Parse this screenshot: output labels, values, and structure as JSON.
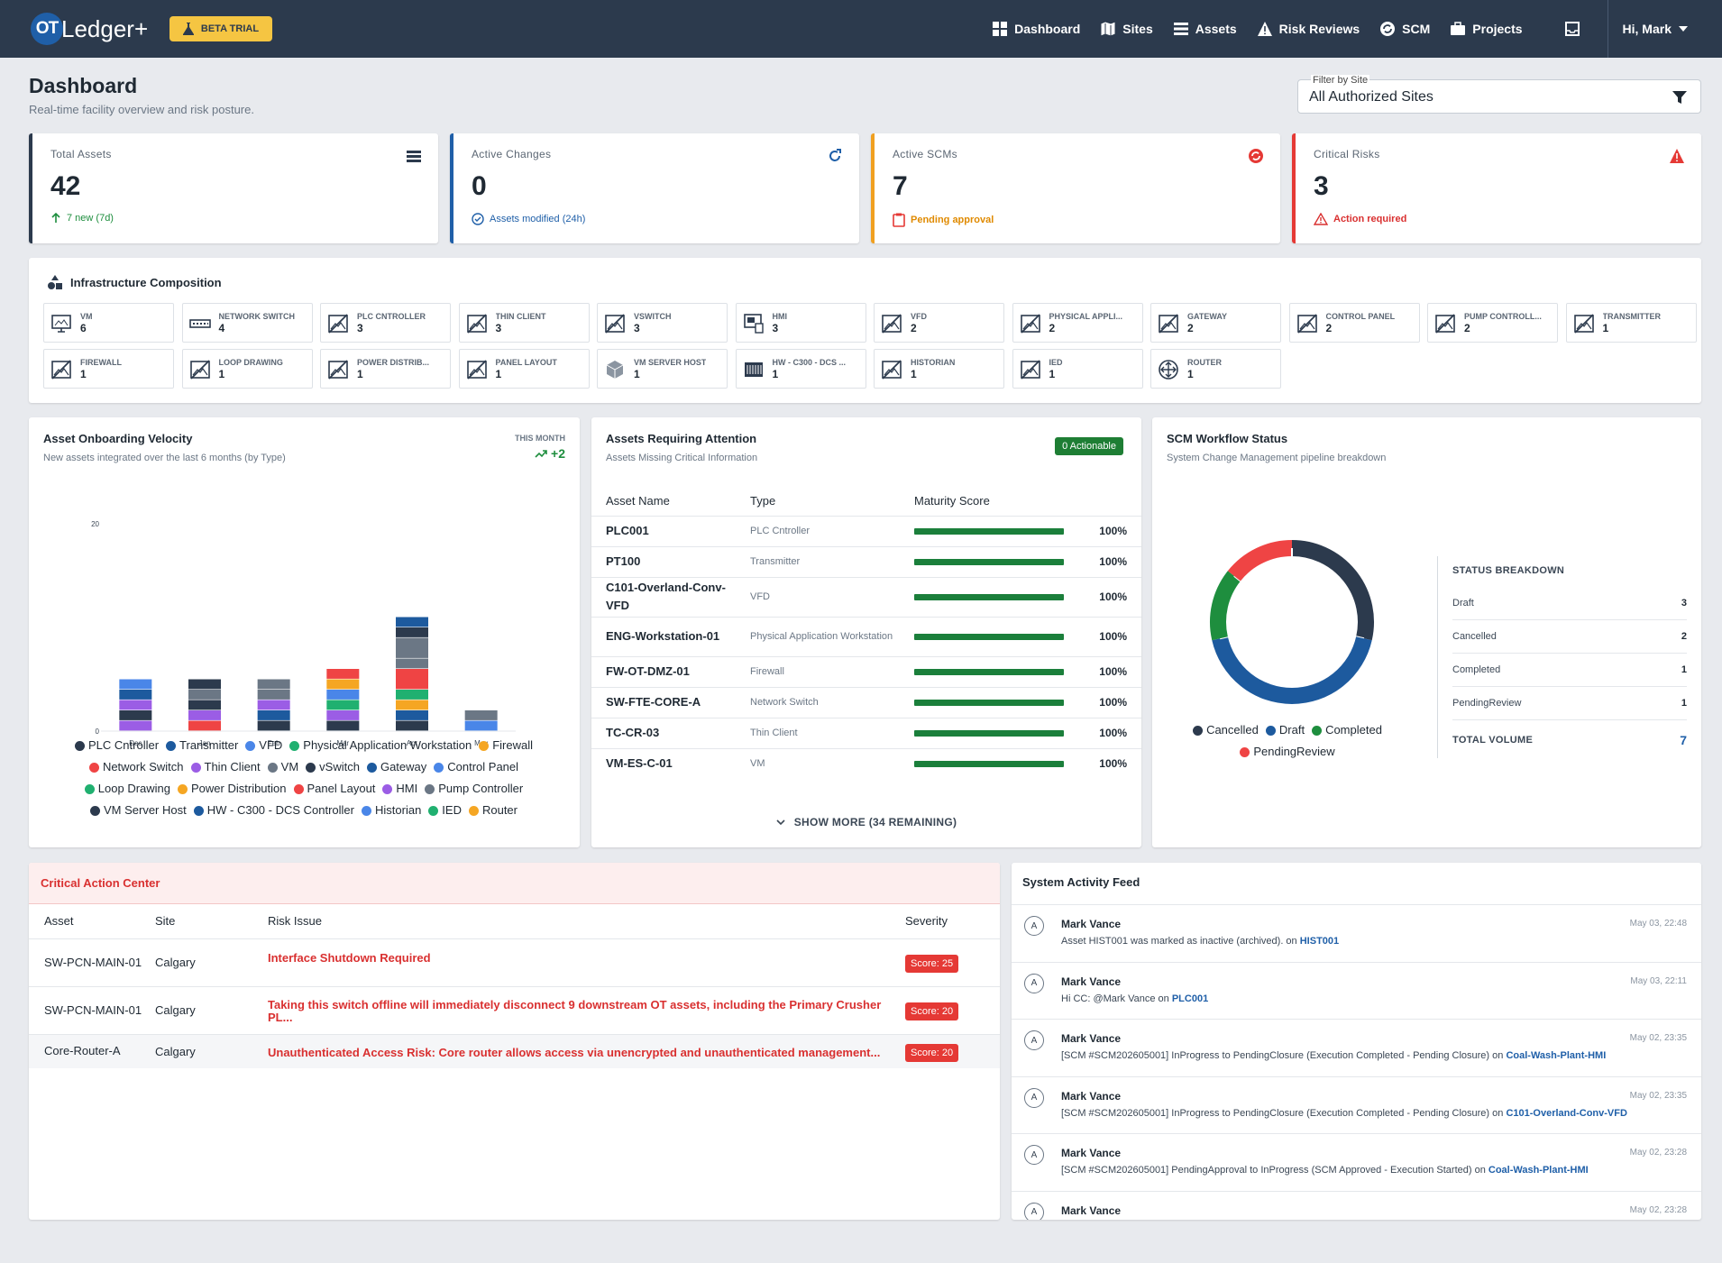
{
  "app": {
    "logo_mark": "OT",
    "logo_text": "Ledger+",
    "beta_label": "BETA TRIAL"
  },
  "nav": [
    {
      "label": "Dashboard",
      "icon": "grid-icon"
    },
    {
      "label": "Sites",
      "icon": "map-icon"
    },
    {
      "label": "Assets",
      "icon": "list-icon"
    },
    {
      "label": "Risk Reviews",
      "icon": "warning-icon"
    },
    {
      "label": "SCM",
      "icon": "sync-icon"
    },
    {
      "label": "Projects",
      "icon": "briefcase-icon"
    }
  ],
  "user": {
    "greeting": "Hi, Mark"
  },
  "page": {
    "title": "Dashboard",
    "subtitle": "Real-time facility overview and risk posture."
  },
  "filter": {
    "label": "Filter by Site",
    "value": "All Authorized Sites"
  },
  "kpis": [
    {
      "title": "Total Assets",
      "value": "42",
      "sub": "7 new (7d)",
      "color": "#1f2933",
      "sub_color": "#1e8e3e",
      "icon": "list-icon"
    },
    {
      "title": "Active Changes",
      "value": "0",
      "sub": "Assets modified (24h)",
      "color": "#1f5fa8",
      "sub_color": "#1f5fa8",
      "icon": "refresh-icon"
    },
    {
      "title": "Active SCMs",
      "value": "7",
      "sub": "Pending approval",
      "color": "#f0a020",
      "sub_color": "#e08a00",
      "icon": "sync-icon"
    },
    {
      "title": "Critical Risks",
      "value": "3",
      "sub": "Action required",
      "color": "#e53935",
      "sub_color": "#d93030",
      "icon": "warning-icon"
    }
  ],
  "infra": {
    "title": "Infrastructure Composition",
    "items": [
      {
        "label": "VM",
        "count": "6",
        "icon": "monitor-icon"
      },
      {
        "label": "Network Switch",
        "count": "4",
        "icon": "switch-icon"
      },
      {
        "label": "PLC Cntroller",
        "count": "3",
        "icon": "image-off-icon"
      },
      {
        "label": "Thin Client",
        "count": "3",
        "icon": "image-off-icon"
      },
      {
        "label": "vSwitch",
        "count": "3",
        "icon": "image-off-icon"
      },
      {
        "label": "HMI",
        "count": "3",
        "icon": "hmi-icon"
      },
      {
        "label": "VFD",
        "count": "2",
        "icon": "image-off-icon"
      },
      {
        "label": "Physical Appli...",
        "count": "2",
        "icon": "image-off-icon"
      },
      {
        "label": "Gateway",
        "count": "2",
        "icon": "image-off-icon"
      },
      {
        "label": "Control Panel",
        "count": "2",
        "icon": "image-off-icon"
      },
      {
        "label": "Pump Controll...",
        "count": "2",
        "icon": "image-off-icon"
      },
      {
        "label": "Transmitter",
        "count": "1",
        "icon": "image-off-icon"
      },
      {
        "label": "Firewall",
        "count": "1",
        "icon": "image-off-icon"
      },
      {
        "label": "Loop Drawing",
        "count": "1",
        "icon": "image-off-icon"
      },
      {
        "label": "Power Distrib...",
        "count": "1",
        "icon": "image-off-icon"
      },
      {
        "label": "Panel Layout",
        "count": "1",
        "icon": "image-off-icon"
      },
      {
        "label": "VM Server Host",
        "count": "1",
        "icon": "server-icon"
      },
      {
        "label": "HW - C300 - DCS ...",
        "count": "1",
        "icon": "chip-icon"
      },
      {
        "label": "Historian",
        "count": "1",
        "icon": "image-off-icon"
      },
      {
        "label": "IED",
        "count": "1",
        "icon": "image-off-icon"
      },
      {
        "label": "Router",
        "count": "1",
        "icon": "router-icon"
      }
    ]
  },
  "velocity": {
    "title": "Asset Onboarding Velocity",
    "subtitle": "New assets integrated over the last 6 months (by Type)",
    "month_label": "THIS MONTH",
    "month_value": "+2"
  },
  "chart_data": {
    "type": "bar",
    "stacked": true,
    "categories": [
      "Dec",
      "Jan",
      "Feb",
      "Mar",
      "Apr",
      "May"
    ],
    "y_ticks": [
      "0",
      "20"
    ],
    "ylim": [
      0,
      20
    ],
    "series_colors": {
      "PLC Cntroller": "#2c3a4d",
      "Transmitter": "#1d5a9e",
      "VFD": "#4a86e8",
      "Physical Application Workstation": "#20b070",
      "Firewall": "#f5a623",
      "Network Switch": "#ef4444",
      "Thin Client": "#9b5de5",
      "VM": "#6b7785",
      "vSwitch": "#2c3a4d",
      "Gateway": "#1d5a9e",
      "Control Panel": "#4a86e8",
      "Loop Drawing": "#20b070",
      "Power Distribution": "#f5a623",
      "Panel Layout": "#ef4444",
      "HMI": "#9b5de5",
      "Pump Controller": "#6b7785",
      "VM Server Host": "#2c3a4d",
      "HW - C300 - DCS Controller": "#1d5a9e",
      "Historian": "#4a86e8",
      "IED": "#20b070",
      "Router": "#f5a623"
    },
    "stacks": [
      [
        {
          "s": "Thin Client",
          "v": 1
        },
        {
          "s": "PLC Cntroller",
          "v": 1
        },
        {
          "s": "Thin Client",
          "v": 1
        },
        {
          "s": "Transmitter",
          "v": 1
        },
        {
          "s": "VFD",
          "v": 1
        }
      ],
      [
        {
          "s": "Network Switch",
          "v": 1
        },
        {
          "s": "Thin Client",
          "v": 1
        },
        {
          "s": "PLC Cntroller",
          "v": 1
        },
        {
          "s": "VM",
          "v": 1
        },
        {
          "s": "PLC Cntroller",
          "v": 1
        }
      ],
      [
        {
          "s": "PLC Cntroller",
          "v": 1
        },
        {
          "s": "Transmitter",
          "v": 1
        },
        {
          "s": "Thin Client",
          "v": 1
        },
        {
          "s": "VM",
          "v": 1
        },
        {
          "s": "VM",
          "v": 1
        }
      ],
      [
        {
          "s": "PLC Cntroller",
          "v": 1
        },
        {
          "s": "Thin Client",
          "v": 1
        },
        {
          "s": "Physical Application Workstation",
          "v": 1
        },
        {
          "s": "VFD",
          "v": 1
        },
        {
          "s": "Firewall",
          "v": 1
        },
        {
          "s": "Network Switch",
          "v": 1
        }
      ],
      [
        {
          "s": "PLC Cntroller",
          "v": 1
        },
        {
          "s": "Transmitter",
          "v": 1
        },
        {
          "s": "Firewall",
          "v": 1
        },
        {
          "s": "Physical Application Workstation",
          "v": 1
        },
        {
          "s": "Network Switch",
          "v": 2
        },
        {
          "s": "VM",
          "v": 1
        },
        {
          "s": "VM",
          "v": 2
        },
        {
          "s": "PLC Cntroller",
          "v": 1
        },
        {
          "s": "Transmitter",
          "v": 1
        }
      ],
      [
        {
          "s": "VFD",
          "v": 1
        },
        {
          "s": "VM",
          "v": 1
        }
      ]
    ],
    "legend": [
      "PLC Cntroller",
      "Transmitter",
      "VFD",
      "Physical Application Workstation",
      "Firewall",
      "Network Switch",
      "Thin Client",
      "VM",
      "vSwitch",
      "Gateway",
      "Control Panel",
      "Loop Drawing",
      "Power Distribution",
      "Panel Layout",
      "HMI",
      "Pump Controller",
      "VM Server Host",
      "HW - C300 - DCS Controller",
      "Historian",
      "IED",
      "Router"
    ]
  },
  "attention": {
    "title": "Assets Requiring Attention",
    "subtitle": "Assets Missing Critical Information",
    "badge": "0 Actionable",
    "columns": [
      "Asset Name",
      "Type",
      "Maturity Score"
    ],
    "rows": [
      {
        "name": "PLC001",
        "type": "PLC Cntroller",
        "score": "100%"
      },
      {
        "name": "PT100",
        "type": "Transmitter",
        "score": "100%"
      },
      {
        "name": "C101-Overland-Conv-VFD",
        "type": "VFD",
        "score": "100%"
      },
      {
        "name": "ENG-Workstation-01",
        "type": "Physical Application Workstation",
        "score": "100%"
      },
      {
        "name": "FW-OT-DMZ-01",
        "type": "Firewall",
        "score": "100%"
      },
      {
        "name": "SW-FTE-CORE-A",
        "type": "Network Switch",
        "score": "100%"
      },
      {
        "name": "TC-CR-03",
        "type": "Thin Client",
        "score": "100%"
      },
      {
        "name": "VM-ES-C-01",
        "type": "VM",
        "score": "100%"
      }
    ],
    "show_more": "SHOW MORE (34 REMAINING)"
  },
  "scm": {
    "title": "SCM Workflow Status",
    "subtitle": "System Change Management pipeline breakdown",
    "breakdown_title": "STATUS BREAKDOWN",
    "breakdown": [
      {
        "label": "Draft",
        "value": "3"
      },
      {
        "label": "Cancelled",
        "value": "2"
      },
      {
        "label": "Completed",
        "value": "1"
      },
      {
        "label": "PendingReview",
        "value": "1"
      }
    ],
    "total_label": "TOTAL VOLUME",
    "total_value": "7",
    "legend": [
      {
        "label": "Cancelled",
        "color": "#2c3a4d"
      },
      {
        "label": "Draft",
        "color": "#1d5a9e"
      },
      {
        "label": "Completed",
        "color": "#1e8e3e"
      },
      {
        "label": "PendingReview",
        "color": "#ef4444"
      }
    ],
    "donut": [
      {
        "label": "Cancelled",
        "value": 2,
        "color": "#2c3a4d"
      },
      {
        "label": "Draft",
        "value": 3,
        "color": "#1d5a9e"
      },
      {
        "label": "Completed",
        "value": 1,
        "color": "#1e8e3e"
      },
      {
        "label": "PendingReview",
        "value": 1,
        "color": "#ef4444"
      }
    ]
  },
  "critical": {
    "title": "Critical Action Center",
    "columns": [
      "Asset",
      "Site",
      "Risk Issue",
      "Severity"
    ],
    "rows": [
      {
        "asset": "SW-PCN-MAIN-01",
        "site": "Calgary",
        "issue": "Interface Shutdown Required",
        "score": "Score: 25"
      },
      {
        "asset": "SW-PCN-MAIN-01",
        "site": "Calgary",
        "issue": "Taking this switch offline will immediately disconnect 9 downstream OT assets, including the Primary Crusher PL...",
        "score": "Score: 20"
      },
      {
        "asset": "Core-Router-A",
        "site": "Calgary",
        "issue": "Unauthenticated Access Risk: Core router allows access via unencrypted and unauthenticated management...",
        "score": "Score: 20"
      }
    ]
  },
  "feed": {
    "title": "System Activity Feed",
    "items": [
      {
        "avatar": "A",
        "user": "Mark Vance",
        "time": "May 03, 22:48",
        "text": "Asset HIST001 was marked as inactive (archived). on ",
        "link": "HIST001"
      },
      {
        "avatar": "A",
        "user": "Mark Vance",
        "time": "May 03, 22:11",
        "text": "Hi CC: @Mark Vance on ",
        "link": "PLC001"
      },
      {
        "avatar": "A",
        "user": "Mark Vance",
        "time": "May 02, 23:35",
        "text": "[SCM #SCM202605001] InProgress to PendingClosure (Execution Completed - Pending Closure) on ",
        "link": "Coal-Wash-Plant-HMI"
      },
      {
        "avatar": "A",
        "user": "Mark Vance",
        "time": "May 02, 23:35",
        "text": "[SCM #SCM202605001] InProgress to PendingClosure (Execution Completed - Pending Closure) on ",
        "link": "C101-Overland-Conv-VFD"
      },
      {
        "avatar": "A",
        "user": "Mark Vance",
        "time": "May 02, 23:28",
        "text": "[SCM #SCM202605001] PendingApproval to InProgress (SCM Approved - Execution Started) on ",
        "link": "Coal-Wash-Plant-HMI"
      },
      {
        "avatar": "A",
        "user": "Mark Vance",
        "time": "May 02, 23:28",
        "text": "",
        "link": ""
      }
    ]
  }
}
